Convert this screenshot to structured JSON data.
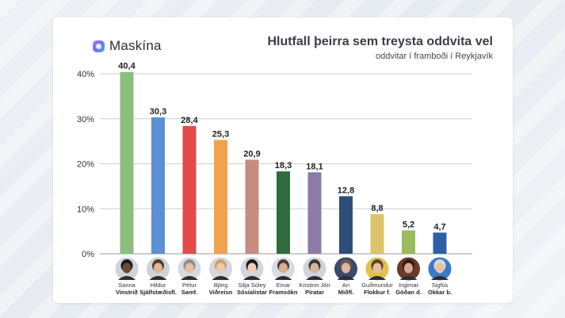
{
  "brand": {
    "name": "Maskína",
    "logo_icon": "maskina-logo-icon"
  },
  "chart_data": {
    "type": "bar",
    "title": "Hlutfall þeirra sem treysta oddvita vel",
    "subtitle": "oddvitar í framboði í Reykjavík",
    "xlabel": "",
    "ylabel": "",
    "ylim": [
      0,
      40
    ],
    "yticks": [
      "40%",
      "30%",
      "20%",
      "10%",
      "0%"
    ],
    "ytick_values": [
      40,
      30,
      20,
      10,
      0
    ],
    "grid": true,
    "legend": "none",
    "categories": [
      {
        "name": "Sanna",
        "party": "Vinstrið",
        "value": 40.4,
        "label": "40,4",
        "color": "#8cbf7e"
      },
      {
        "name": "Hildur",
        "party": "Sjálfstæðisfl.",
        "value": 30.3,
        "label": "30,3",
        "color": "#5b8fd6"
      },
      {
        "name": "Pétur",
        "party": "Samf.",
        "value": 28.4,
        "label": "28,4",
        "color": "#e24a4a"
      },
      {
        "name": "Björg",
        "party": "Viðreisn",
        "value": 25.3,
        "label": "25,3",
        "color": "#f0a24e"
      },
      {
        "name": "Silja Sóley",
        "party": "Sósíalistar",
        "value": 20.9,
        "label": "20,9",
        "color": "#c78b82"
      },
      {
        "name": "Einar",
        "party": "Framsókn",
        "value": 18.3,
        "label": "18,3",
        "color": "#2f6b3c"
      },
      {
        "name": "Kristinn Jón",
        "party": "Píratar",
        "value": 18.1,
        "label": "18,1",
        "color": "#8c7ba8"
      },
      {
        "name": "Ari",
        "party": "Miðfl.",
        "value": 12.8,
        "label": "12,8",
        "color": "#2e4e7a"
      },
      {
        "name": "Guðmundur",
        "party": "Flokkur f.",
        "value": 8.8,
        "label": "8,8",
        "color": "#dcc46a"
      },
      {
        "name": "Ingimar",
        "party": "Góðan d.",
        "value": 5.2,
        "label": "5,2",
        "color": "#9cba5e"
      },
      {
        "name": "Sigfús",
        "party": "Okkar b.",
        "value": 4.7,
        "label": "4,7",
        "color": "#2d5fa8"
      }
    ]
  },
  "avatars": [
    {
      "icon": "portrait-sanna-icon",
      "bg": "#cfd4da",
      "skin": "#6b4a38",
      "hair": "#1e1a18"
    },
    {
      "icon": "portrait-hildur-icon",
      "bg": "#cdd3d9",
      "skin": "#e3b59a",
      "hair": "#5a3a28"
    },
    {
      "icon": "portrait-petur-icon",
      "bg": "#d6dbe0",
      "skin": "#e7c0a6",
      "hair": "#8c8c8c"
    },
    {
      "icon": "portrait-bjorg-icon",
      "bg": "#d3d8de",
      "skin": "#edc8ad",
      "hair": "#c9a168"
    },
    {
      "icon": "portrait-silja-icon",
      "bg": "#d1d6dc",
      "skin": "#efcfb8",
      "hair": "#1c1a1c"
    },
    {
      "icon": "portrait-einar-icon",
      "bg": "#d8dce2",
      "skin": "#d8ad92",
      "hair": "#4a3a30"
    },
    {
      "icon": "portrait-kristinn-icon",
      "bg": "#cfd4da",
      "skin": "#d9b49c",
      "hair": "#3a3634"
    },
    {
      "icon": "portrait-ari-icon",
      "bg": "#3a4a6a",
      "skin": "#e0b79c",
      "hair": "#6a5a50"
    },
    {
      "icon": "portrait-gudmundur-icon",
      "bg": "#e0c24a",
      "skin": "#e6bfa2",
      "hair": "#5a4030"
    },
    {
      "icon": "portrait-ingimar-icon",
      "bg": "#6a3a2a",
      "skin": "#d8a88c",
      "hair": "#2a1e18"
    },
    {
      "icon": "portrait-sigfus-icon",
      "bg": "#3a7ac8",
      "skin": "#e8c2a6",
      "hair": "#d8d8d8"
    }
  ]
}
